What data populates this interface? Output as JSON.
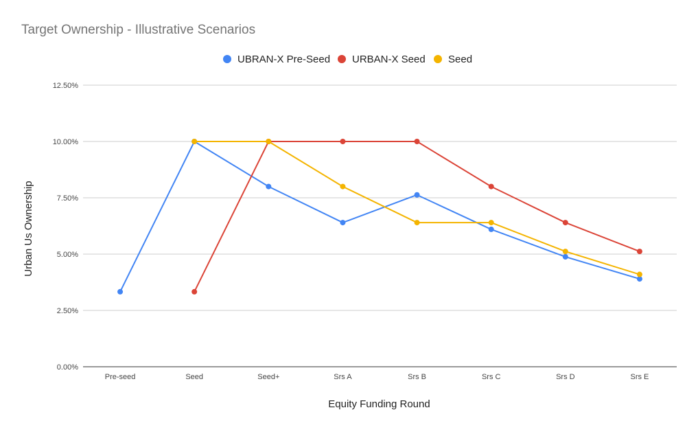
{
  "chart_data": {
    "type": "line",
    "title": "Target Ownership - Illustrative Scenarios",
    "xlabel": "Equity Funding Round",
    "ylabel": "Urban Us Ownership",
    "categories": [
      "Pre-seed",
      "Seed",
      "Seed+",
      "Srs A",
      "Srs B",
      "Srs C",
      "Srs D",
      "Srs E"
    ],
    "yticks": [
      "0.00%",
      "2.50%",
      "5.00%",
      "7.50%",
      "10.00%",
      "12.50%"
    ],
    "ylim": [
      0,
      0.125
    ],
    "grid": true,
    "legend_position": "top",
    "series": [
      {
        "name": "UBRAN-X Pre-Seed",
        "color": "#4285F4",
        "values": [
          0.0333,
          0.1,
          0.08,
          0.064,
          0.0763,
          0.061,
          0.0488,
          0.039
        ]
      },
      {
        "name": "URBAN-X Seed",
        "color": "#DB4437",
        "values": [
          null,
          0.0333,
          0.1,
          0.1,
          0.1,
          0.08,
          0.064,
          0.0512
        ]
      },
      {
        "name": "Seed",
        "color": "#F4B400",
        "values": [
          null,
          0.1,
          0.1,
          0.08,
          0.064,
          0.064,
          0.0512,
          0.041
        ]
      }
    ]
  }
}
